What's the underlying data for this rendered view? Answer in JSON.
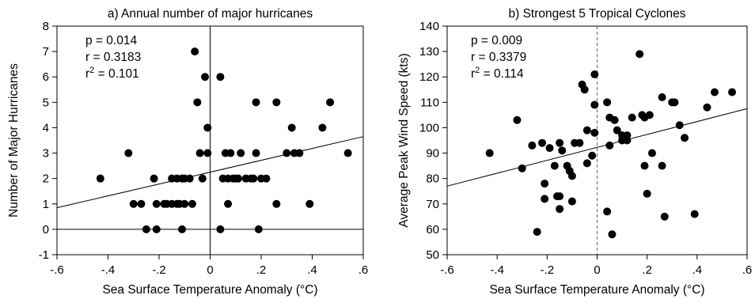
{
  "chart_data": [
    {
      "type": "scatter",
      "title": "a) Annual number of major hurricanes",
      "xlabel": "Sea Surface Temperature Anomaly (°C)",
      "ylabel": "Number of Major Hurricanes",
      "xlim": [
        -0.6,
        0.6
      ],
      "ylim": [
        -1,
        8
      ],
      "xticks": [
        -0.6,
        -0.4,
        -0.2,
        0,
        0.2,
        0.4,
        0.6
      ],
      "xtick_labels": [
        "-.6",
        "-.4",
        "-.2",
        "0",
        ".2",
        ".4",
        ".6"
      ],
      "yticks": [
        -1,
        0,
        1,
        2,
        3,
        4,
        5,
        6,
        7,
        8
      ],
      "ytick_labels": [
        "-1",
        "0",
        "1",
        "2",
        "3",
        "4",
        "5",
        "6",
        "7",
        "8"
      ],
      "zero_hline": true,
      "zero_vline": "solid",
      "stats": {
        "p": "p = 0.014",
        "r": "r = 0.3183",
        "r2_prefix": "r",
        "r2_sup": "2",
        "r2_value": " = 0.101"
      },
      "trendline": {
        "x": [
          -0.6,
          0.6
        ],
        "y": [
          0.85,
          3.65
        ]
      },
      "points": [
        [
          -0.43,
          2
        ],
        [
          -0.32,
          3
        ],
        [
          -0.3,
          1
        ],
        [
          -0.27,
          1
        ],
        [
          -0.25,
          0
        ],
        [
          -0.22,
          2
        ],
        [
          -0.21,
          1
        ],
        [
          -0.21,
          0
        ],
        [
          -0.18,
          1
        ],
        [
          -0.17,
          1
        ],
        [
          -0.15,
          1
        ],
        [
          -0.15,
          2
        ],
        [
          -0.13,
          2
        ],
        [
          -0.13,
          1
        ],
        [
          -0.12,
          1
        ],
        [
          -0.11,
          2
        ],
        [
          -0.11,
          0
        ],
        [
          -0.1,
          1
        ],
        [
          -0.1,
          2
        ],
        [
          -0.08,
          2
        ],
        [
          -0.07,
          1
        ],
        [
          -0.06,
          7
        ],
        [
          -0.05,
          5
        ],
        [
          -0.04,
          3
        ],
        [
          -0.03,
          2
        ],
        [
          -0.02,
          6
        ],
        [
          -0.01,
          4
        ],
        [
          -0.01,
          3
        ],
        [
          0.04,
          0
        ],
        [
          0.04,
          6
        ],
        [
          0.05,
          2
        ],
        [
          0.06,
          3
        ],
        [
          0.07,
          1
        ],
        [
          0.07,
          2
        ],
        [
          0.08,
          3
        ],
        [
          0.09,
          2
        ],
        [
          0.1,
          2
        ],
        [
          0.11,
          2
        ],
        [
          0.12,
          3
        ],
        [
          0.14,
          2
        ],
        [
          0.16,
          2
        ],
        [
          0.17,
          2
        ],
        [
          0.18,
          5
        ],
        [
          0.18,
          3
        ],
        [
          0.19,
          0
        ],
        [
          0.2,
          2
        ],
        [
          0.22,
          2
        ],
        [
          0.26,
          1
        ],
        [
          0.26,
          5
        ],
        [
          0.3,
          3
        ],
        [
          0.32,
          4
        ],
        [
          0.33,
          3
        ],
        [
          0.35,
          3
        ],
        [
          0.39,
          1
        ],
        [
          0.44,
          4
        ],
        [
          0.47,
          5
        ],
        [
          0.54,
          3
        ]
      ]
    },
    {
      "type": "scatter",
      "title": "b) Strongest 5 Tropical Cyclones",
      "xlabel": "Sea Surface Temperature Anomaly (°C)",
      "ylabel": "Average Peak Wind Speed (kts)",
      "xlim": [
        -0.6,
        0.6
      ],
      "ylim": [
        50,
        140
      ],
      "xticks": [
        -0.6,
        -0.4,
        -0.2,
        0,
        0.2,
        0.4,
        0.6
      ],
      "xtick_labels": [
        "-.6",
        "-.4",
        "-.2",
        "0",
        ".2",
        ".4",
        ".6"
      ],
      "yticks": [
        50,
        60,
        70,
        80,
        90,
        100,
        110,
        120,
        130,
        140
      ],
      "ytick_labels": [
        "50",
        "60",
        "70",
        "80",
        "90",
        "100",
        "110",
        "120",
        "130",
        "140"
      ],
      "zero_hline": false,
      "zero_vline": "dashed",
      "stats": {
        "p": "p = 0.009",
        "r": "r = 0.3379",
        "r2_prefix": "r",
        "r2_sup": "2",
        "r2_value": " = 0.114"
      },
      "trendline": {
        "x": [
          -0.6,
          0.6
        ],
        "y": [
          77,
          107.5
        ]
      },
      "points": [
        [
          -0.43,
          90
        ],
        [
          -0.32,
          103
        ],
        [
          -0.3,
          84
        ],
        [
          -0.26,
          93
        ],
        [
          -0.24,
          59
        ],
        [
          -0.22,
          94
        ],
        [
          -0.21,
          78
        ],
        [
          -0.21,
          72
        ],
        [
          -0.19,
          92
        ],
        [
          -0.17,
          85
        ],
        [
          -0.16,
          73
        ],
        [
          -0.15,
          68
        ],
        [
          -0.15,
          73
        ],
        [
          -0.15,
          94
        ],
        [
          -0.14,
          91
        ],
        [
          -0.12,
          85
        ],
        [
          -0.11,
          83
        ],
        [
          -0.1,
          81
        ],
        [
          -0.1,
          71
        ],
        [
          -0.09,
          94
        ],
        [
          -0.07,
          94
        ],
        [
          -0.06,
          117
        ],
        [
          -0.05,
          115
        ],
        [
          -0.04,
          86
        ],
        [
          -0.04,
          99
        ],
        [
          -0.02,
          89
        ],
        [
          -0.01,
          109
        ],
        [
          -0.01,
          121
        ],
        [
          -0.01,
          98
        ],
        [
          0.04,
          67
        ],
        [
          0.04,
          110
        ],
        [
          0.05,
          104
        ],
        [
          0.05,
          93
        ],
        [
          0.06,
          58
        ],
        [
          0.07,
          103
        ],
        [
          0.08,
          99
        ],
        [
          0.1,
          95
        ],
        [
          0.1,
          97
        ],
        [
          0.12,
          97
        ],
        [
          0.12,
          95
        ],
        [
          0.14,
          104
        ],
        [
          0.17,
          129
        ],
        [
          0.18,
          105
        ],
        [
          0.19,
          85
        ],
        [
          0.19,
          104
        ],
        [
          0.2,
          74
        ],
        [
          0.21,
          105
        ],
        [
          0.22,
          90
        ],
        [
          0.26,
          112
        ],
        [
          0.26,
          85
        ],
        [
          0.27,
          65
        ],
        [
          0.3,
          110
        ],
        [
          0.31,
          110
        ],
        [
          0.33,
          101
        ],
        [
          0.35,
          96
        ],
        [
          0.39,
          66
        ],
        [
          0.44,
          108
        ],
        [
          0.47,
          114
        ],
        [
          0.54,
          114
        ]
      ]
    }
  ]
}
